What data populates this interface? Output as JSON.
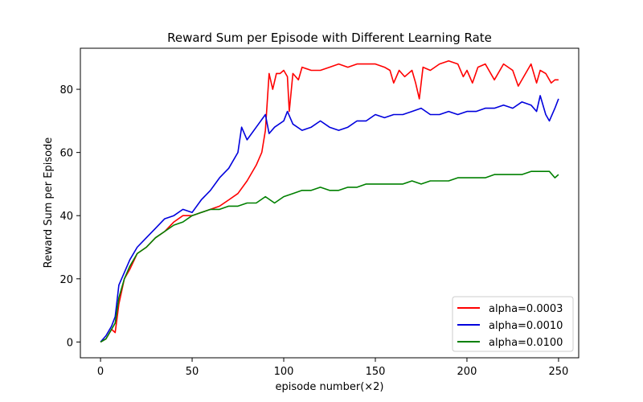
{
  "chart_data": {
    "type": "line",
    "title": "Reward Sum per Episode with Different Learning Rate",
    "xlabel": "episode number(×2)",
    "ylabel": "Reward Sum per Episode",
    "xlim": [
      -11,
      261
    ],
    "ylim": [
      -5,
      93
    ],
    "xticks": [
      0,
      50,
      100,
      150,
      200,
      250
    ],
    "yticks": [
      0,
      20,
      40,
      60,
      80
    ],
    "grid": false,
    "legend_position": "bottom-right",
    "series": [
      {
        "name": "alpha=0.0003",
        "color": "#ff0000",
        "x": [
          0,
          3,
          6,
          8,
          10,
          13,
          16,
          20,
          25,
          30,
          35,
          40,
          45,
          50,
          55,
          60,
          65,
          70,
          75,
          80,
          85,
          88,
          90,
          92,
          94,
          96,
          98,
          100,
          102,
          103,
          105,
          108,
          110,
          115,
          120,
          125,
          130,
          135,
          140,
          145,
          150,
          155,
          158,
          160,
          163,
          166,
          170,
          172,
          174,
          176,
          180,
          185,
          190,
          195,
          198,
          200,
          203,
          206,
          210,
          215,
          220,
          225,
          228,
          232,
          235,
          238,
          240,
          243,
          246,
          248,
          250
        ],
        "y": [
          0,
          1,
          4,
          3,
          12,
          20,
          23,
          28,
          30,
          33,
          35,
          38,
          40,
          40,
          41,
          42,
          43,
          45,
          47,
          51,
          56,
          60,
          67,
          85,
          80,
          85,
          85,
          86,
          84,
          73,
          85,
          83,
          87,
          86,
          86,
          87,
          88,
          87,
          88,
          88,
          88,
          87,
          86,
          82,
          86,
          84,
          86,
          82,
          77,
          87,
          86,
          88,
          89,
          88,
          84,
          86,
          82,
          87,
          88,
          83,
          88,
          86,
          81,
          85,
          88,
          82,
          86,
          85,
          82,
          83,
          83
        ]
      },
      {
        "name": "alpha=0.0010",
        "color": "#0000dd",
        "x": [
          0,
          3,
          6,
          8,
          10,
          13,
          16,
          20,
          25,
          30,
          35,
          40,
          45,
          50,
          55,
          60,
          65,
          70,
          75,
          77,
          80,
          85,
          90,
          92,
          95,
          100,
          102,
          105,
          110,
          115,
          120,
          125,
          130,
          135,
          140,
          145,
          150,
          155,
          160,
          165,
          170,
          175,
          180,
          185,
          190,
          195,
          200,
          205,
          210,
          215,
          220,
          225,
          230,
          235,
          238,
          240,
          243,
          245,
          248,
          250
        ],
        "y": [
          0,
          2,
          5,
          8,
          18,
          22,
          26,
          30,
          33,
          36,
          39,
          40,
          42,
          41,
          45,
          48,
          52,
          55,
          60,
          68,
          64,
          68,
          72,
          66,
          68,
          70,
          73,
          69,
          67,
          68,
          70,
          68,
          67,
          68,
          70,
          70,
          72,
          71,
          72,
          72,
          73,
          74,
          72,
          72,
          73,
          72,
          73,
          73,
          74,
          74,
          75,
          74,
          76,
          75,
          73,
          78,
          72,
          70,
          74,
          77
        ]
      },
      {
        "name": "alpha=0.0100",
        "color": "#008000",
        "x": [
          0,
          3,
          6,
          8,
          10,
          13,
          16,
          20,
          25,
          30,
          35,
          40,
          45,
          50,
          55,
          60,
          65,
          70,
          75,
          80,
          85,
          90,
          95,
          100,
          105,
          110,
          115,
          120,
          125,
          130,
          135,
          140,
          145,
          150,
          155,
          160,
          165,
          170,
          175,
          180,
          185,
          190,
          195,
          200,
          205,
          210,
          215,
          220,
          225,
          230,
          235,
          240,
          245,
          248,
          250
        ],
        "y": [
          0,
          1,
          4,
          6,
          14,
          20,
          24,
          28,
          30,
          33,
          35,
          37,
          38,
          40,
          41,
          42,
          42,
          43,
          43,
          44,
          44,
          46,
          44,
          46,
          47,
          48,
          48,
          49,
          48,
          48,
          49,
          49,
          50,
          50,
          50,
          50,
          50,
          51,
          50,
          51,
          51,
          51,
          52,
          52,
          52,
          52,
          53,
          53,
          53,
          53,
          54,
          54,
          54,
          52,
          53
        ]
      }
    ]
  }
}
